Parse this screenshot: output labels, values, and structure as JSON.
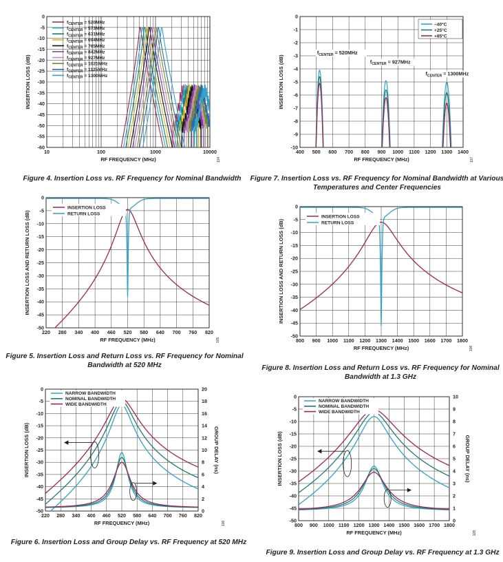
{
  "colors": {
    "mag": "#a6234f",
    "cyan": "#2ea3cb",
    "teal": "#1f7c74",
    "black": "#111111",
    "yellow": "#d3b91c",
    "purple": "#7e3f98",
    "pink": "#c28fb9",
    "olive": "#7a8a24",
    "blue": "#2c6ab3"
  },
  "figures": [
    {
      "caption": [
        "Figure 4. Insertion Loss vs. RF Frequency for Nominal Bandwidth"
      ],
      "id": "104",
      "chart_data": {
        "type": "line",
        "xscale": "log",
        "grid": true,
        "xlim": [
          10,
          10000
        ],
        "ylim": [
          -60,
          0
        ],
        "xticks": [
          10,
          100,
          1000,
          10000
        ],
        "yticks": [
          0,
          -5,
          -10,
          -15,
          -20,
          -25,
          -30,
          -35,
          -40,
          -45,
          -50,
          -55,
          -60
        ],
        "xlabel": "RF FREQUENCY (MHz)",
        "ylabel": "INSERTION LOSS (dB)",
        "legend": "top-left",
        "series": [
          {
            "name": "fCENTER = 520MHz",
            "fc": 520,
            "color": "mag"
          },
          {
            "name": "fCENTER = 573MHz",
            "fc": 573,
            "color": "cyan"
          },
          {
            "name": "fCENTER = 631MHz",
            "fc": 631,
            "color": "teal"
          },
          {
            "name": "fCENTER = 694MHz",
            "fc": 694,
            "color": "yellow"
          },
          {
            "name": "fCENTER = 765MHz",
            "fc": 765,
            "color": "black"
          },
          {
            "name": "fCENTER = 842MHz",
            "fc": 842,
            "color": "purple"
          },
          {
            "name": "fCENTER = 927MHz",
            "fc": 927,
            "color": "pink"
          },
          {
            "name": "fCENTER = 1021MHz",
            "fc": 1021,
            "color": "olive"
          },
          {
            "name": "fCENTER = 1125MHz",
            "fc": 1125,
            "color": "blue"
          },
          {
            "name": "fCENTER = 1300MHz",
            "fc": 1300,
            "color": "cyan"
          }
        ]
      }
    },
    {
      "caption": [
        "Figure 7. Insertion Loss vs. RF Frequency for Nominal Bandwidth at Various",
        "Temperatures and Center Frequencies"
      ],
      "id": "107",
      "chart_data": {
        "type": "line",
        "grid": true,
        "xlim": [
          400,
          1400
        ],
        "ylim": [
          -10,
          0
        ],
        "xticks": [
          400,
          500,
          600,
          700,
          800,
          900,
          1000,
          1100,
          1200,
          1300,
          1400
        ],
        "yticks": [
          0,
          -1,
          -2,
          -3,
          -4,
          -5,
          -6,
          -7,
          -8,
          -9,
          -10
        ],
        "xlabel": "RF FREQUENCY (MHz)",
        "ylabel": "INSERTION LOSS (dB)",
        "legend": "top-right",
        "annotations": [
          {
            "text": "fCENTER = 520MHz",
            "x": 505,
            "y": -2.9
          },
          {
            "text": "fCENTER = 927MHz",
            "x": 830,
            "y": -3.6
          },
          {
            "text": "fCENTER = 1300MHz",
            "x": 1170,
            "y": -4.5
          }
        ],
        "series": [
          {
            "name": "–40°C",
            "color": "cyan",
            "peaks": [
              [
                520,
                -4.1
              ],
              [
                927,
                -4.9
              ],
              [
                1300,
                -5.0
              ]
            ]
          },
          {
            "name": "+25°C",
            "color": "teal",
            "peaks": [
              [
                520,
                -4.6
              ],
              [
                927,
                -5.6
              ],
              [
                1300,
                -5.8
              ]
            ]
          },
          {
            "name": "+85°C",
            "color": "mag",
            "peaks": [
              [
                520,
                -5.1
              ],
              [
                927,
                -6.2
              ],
              [
                1300,
                -6.6
              ]
            ]
          }
        ]
      }
    },
    {
      "caption": [
        "Figure 5. Insertion Loss and Return Loss vs. RF Frequency for Nominal",
        "Bandwidth at 520 MHz"
      ],
      "id": "105",
      "chart_data": {
        "type": "line",
        "grid": true,
        "xlim": [
          220,
          820
        ],
        "ylim": [
          -50,
          0
        ],
        "xticks": [
          220,
          280,
          340,
          400,
          460,
          520,
          580,
          640,
          700,
          760,
          820
        ],
        "yticks": [
          0,
          -5,
          -10,
          -15,
          -20,
          -25,
          -30,
          -35,
          -40,
          -45,
          -50
        ],
        "xlabel": "RF FREQUENCY (MHz)",
        "ylabel": "INSERTION LOSS AND RETURN LOSS (dB)",
        "legend": "top-left",
        "series": [
          {
            "name": "INSERTION LOSS",
            "color": "mag",
            "peak": [
              520,
              -4.5
            ]
          },
          {
            "name": "RETURN LOSS",
            "color": "cyan",
            "notch": [
              520,
              -38
            ]
          }
        ]
      }
    },
    {
      "caption": [
        "Figure 8. Insertion Loss and Return Loss vs. RF Frequency for Nominal",
        "Bandwidth at 1.3 GHz"
      ],
      "id": "108",
      "chart_data": {
        "type": "line",
        "grid": true,
        "xlim": [
          800,
          1800
        ],
        "ylim": [
          -50,
          0
        ],
        "xticks": [
          800,
          900,
          1000,
          1100,
          1200,
          1300,
          1400,
          1500,
          1600,
          1700,
          1800
        ],
        "yticks": [
          0,
          -5,
          -10,
          -15,
          -20,
          -25,
          -30,
          -35,
          -40,
          -45,
          -50
        ],
        "xlabel": "RF FREQUENCY (MHz)",
        "ylabel": "INSERTION LOSS AND RETURN LOSS (dB)",
        "legend": "top-left",
        "series": [
          {
            "name": "INSERTION LOSS",
            "color": "mag",
            "peak": [
              1300,
              -6
            ]
          },
          {
            "name": "RETURN LOSS",
            "color": "cyan",
            "notch": [
              1300,
              -46
            ]
          }
        ]
      }
    },
    {
      "caption": [
        "Figure 6. Insertion Loss and Group Delay vs. RF Frequency at 520 MHz"
      ],
      "id": "106",
      "chart_data": {
        "type": "line",
        "grid": true,
        "xlim": [
          220,
          820
        ],
        "ylim": [
          -50,
          0
        ],
        "y2lim": [
          0,
          20
        ],
        "xticks": [
          220,
          280,
          340,
          400,
          460,
          520,
          580,
          640,
          700,
          760,
          820
        ],
        "yticks": [
          0,
          -5,
          -10,
          -15,
          -20,
          -25,
          -30,
          -35,
          -40,
          -45,
          -50
        ],
        "y2ticks": [
          20,
          18,
          16,
          14,
          12,
          10,
          8,
          6,
          4,
          2,
          0
        ],
        "xlabel": "RF FREQUENCY (MHz)",
        "ylabel": "INSERTION LOSS (dB)",
        "y2label": "GROUP DELAY (ns)",
        "legend": "top-left",
        "series": [
          {
            "name": "NARROW BANDWIDTH",
            "color": "cyan",
            "il_peak": -6.5,
            "gd_peak": 9.6
          },
          {
            "name": "NOMINAL BANDWIDTH",
            "color": "teal",
            "il_peak": -5.0,
            "gd_peak": 8.8
          },
          {
            "name": "WIDE BANDWIDTH",
            "color": "mag",
            "il_peak": -4.0,
            "gd_peak": 8.0
          }
        ]
      }
    },
    {
      "caption": [
        "Figure 9. Insertion Loss and Group Delay vs. RF Frequency at 1.3 GHz"
      ],
      "id": "109",
      "chart_data": {
        "type": "line",
        "grid": true,
        "xlim": [
          800,
          1800
        ],
        "ylim": [
          -50,
          0
        ],
        "y2lim": [
          0,
          10
        ],
        "xticks": [
          800,
          900,
          1000,
          1100,
          1200,
          1300,
          1400,
          1500,
          1600,
          1700,
          1800
        ],
        "yticks": [
          0,
          -5,
          -10,
          -15,
          -20,
          -25,
          -30,
          -35,
          -40,
          -45,
          -50
        ],
        "y2ticks": [
          10,
          9,
          8,
          7,
          6,
          5,
          4,
          3,
          2,
          1,
          0
        ],
        "xlabel": "RF FREQUENCY (MHz)",
        "ylabel": "INSERTION LOSS (dB)",
        "y2label": "GROUP DELAY (ns)",
        "legend": "top-left",
        "series": [
          {
            "name": "NARROW BANDWIDTH",
            "color": "cyan",
            "il_peak": -8.0,
            "gd_peak": 4.4
          },
          {
            "name": "NOMINAL BANDWIDTH",
            "color": "teal",
            "il_peak": -6.3,
            "gd_peak": 4.2
          },
          {
            "name": "WIDE BANDWIDTH",
            "color": "mag",
            "il_peak": -5.3,
            "gd_peak": 3.9
          }
        ]
      }
    }
  ]
}
